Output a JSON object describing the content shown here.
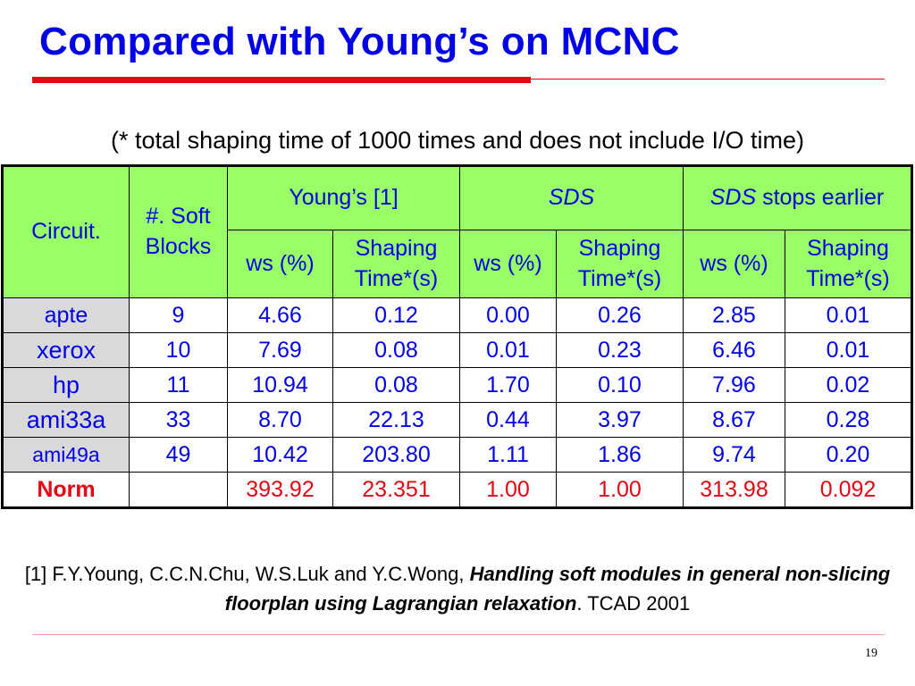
{
  "slide": {
    "title": "Compared with Young’s on MCNC",
    "subtitle": "(* total shaping time of 1000 times and does not include I/O time)",
    "page_number": "19"
  },
  "table": {
    "header": {
      "circuit": "Circuit.",
      "soft_blocks_line1": "#. Soft",
      "soft_blocks_line2": "Blocks",
      "young": "Young’s [1]",
      "sds": "SDS",
      "sds_early_italic": "SDS",
      "sds_early_rest": " stops earlier",
      "ws": "ws (%)",
      "shaping_line1": "Shaping",
      "shaping_line2": "Time*(s)"
    },
    "rows": [
      {
        "circuit": "apte",
        "blocks": "9",
        "young_ws": "4.66",
        "young_time": "0.12",
        "sds_ws": "0.00",
        "sds_time": "0.26",
        "early_ws": "2.85",
        "early_time": "0.01"
      },
      {
        "circuit": "xerox",
        "blocks": "10",
        "young_ws": "7.69",
        "young_time": "0.08",
        "sds_ws": "0.01",
        "sds_time": "0.23",
        "early_ws": "6.46",
        "early_time": "0.01"
      },
      {
        "circuit": "hp",
        "blocks": "11",
        "young_ws": "10.94",
        "young_time": "0.08",
        "sds_ws": "1.70",
        "sds_time": "0.10",
        "early_ws": "7.96",
        "early_time": "0.02"
      },
      {
        "circuit": "ami33a",
        "blocks": "33",
        "young_ws": "8.70",
        "young_time": "22.13",
        "sds_ws": "0.44",
        "sds_time": "3.97",
        "early_ws": "8.67",
        "early_time": "0.28"
      },
      {
        "circuit": "ami49a",
        "blocks": "49",
        "young_ws": "10.42",
        "young_time": "203.80",
        "sds_ws": "1.11",
        "sds_time": "1.86",
        "early_ws": "9.74",
        "early_time": "0.20"
      },
      {
        "circuit": "Norm",
        "blocks": "",
        "young_ws": "393.92",
        "young_time": "23.351",
        "sds_ws": "1.00",
        "sds_time": "1.00",
        "early_ws": "313.98",
        "early_time": "0.092"
      }
    ]
  },
  "reference": {
    "prefix": "[1] F.Y.Young, C.C.N.Chu, W.S.Luk and Y.C.Wong, ",
    "title_bold_italic": "Handling soft modules in general non-slicing floorplan using Lagrangian relaxation",
    "suffix": ". TCAD 2001"
  },
  "colors": {
    "title": "#0000e6",
    "accent_red": "#e30613",
    "header_bg": "#99ff66",
    "circuit_bg": "#d9d9d9"
  }
}
